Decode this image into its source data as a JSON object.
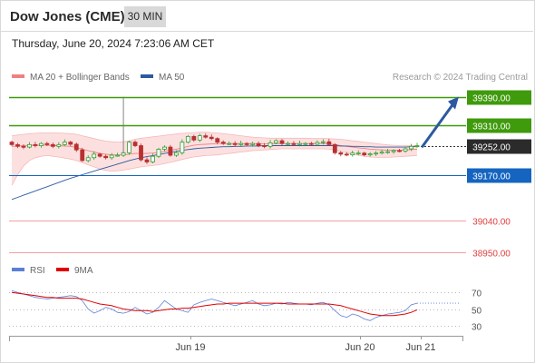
{
  "header": {
    "title": "Dow Jones (CME)",
    "timeframe": "30 MIN"
  },
  "datetime": "Thursday, June 20, 2024 7:23:06 AM CET",
  "legend": [
    {
      "label": "MA 20 + Bollinger Bands",
      "color": "#f08080"
    },
    {
      "label": "MA 50",
      "color": "#2c5aa0"
    }
  ],
  "credit": "Research © 2024 Trading Central",
  "rsi_legend": [
    {
      "label": "RSI",
      "color": "#5b7fd6"
    },
    {
      "label": "9MA",
      "color": "#e00000"
    }
  ],
  "colors": {
    "up": "#2e9e2e",
    "down": "#b83030",
    "resistance": "#3f9a0c",
    "support": "#1565c0",
    "target_low": "#e04040",
    "current": "#2b2b2b",
    "arrow": "#2c5aa0"
  },
  "chart_data": [
    {
      "type": "candlestick",
      "ylim": [
        38920,
        39420
      ],
      "x_ticks": [
        "Jun 19",
        "Jun 20",
        "Jun 21"
      ],
      "price_levels": [
        {
          "label": "39390.00",
          "value": 39390,
          "kind": "resistance"
        },
        {
          "label": "39310.00",
          "value": 39310,
          "kind": "resistance"
        },
        {
          "label": "39252.00",
          "value": 39252,
          "kind": "current"
        },
        {
          "label": "39170.00",
          "value": 39170,
          "kind": "support"
        },
        {
          "label": "39040.00",
          "value": 39040,
          "kind": "target_low"
        },
        {
          "label": "38950.00",
          "value": 38950,
          "kind": "target_low"
        }
      ],
      "projection": {
        "from": 39250,
        "to": 39380
      },
      "close": [
        39255,
        39250,
        39248,
        39255,
        39252,
        39258,
        39255,
        39250,
        39255,
        39262,
        39256,
        39240,
        39210,
        39218,
        39228,
        39222,
        39218,
        39225,
        39225,
        39232,
        39262,
        39252,
        39212,
        39206,
        39222,
        39242,
        39248,
        39225,
        39232,
        39262,
        39278,
        39268,
        39280,
        39276,
        39272,
        39262,
        39258,
        39258,
        39255,
        39258,
        39255,
        39258,
        39252,
        39250,
        39260,
        39266,
        39258,
        39258,
        39255,
        39258,
        39258,
        39256,
        39261,
        39263,
        39255,
        39232,
        39228,
        39226,
        39231,
        39231,
        39226,
        39229,
        39231,
        39234,
        39235,
        39238,
        39237,
        39243,
        39250,
        39252
      ],
      "open": [
        39262,
        39255,
        39250,
        39248,
        39255,
        39252,
        39258,
        39255,
        39250,
        39255,
        39262,
        39256,
        39240,
        39210,
        39218,
        39228,
        39222,
        39218,
        39225,
        39225,
        39232,
        39262,
        39252,
        39212,
        39206,
        39222,
        39242,
        39248,
        39225,
        39232,
        39262,
        39278,
        39268,
        39280,
        39276,
        39272,
        39262,
        39258,
        39258,
        39255,
        39258,
        39255,
        39258,
        39252,
        39250,
        39260,
        39266,
        39258,
        39258,
        39255,
        39258,
        39258,
        39256,
        39261,
        39263,
        39255,
        39232,
        39228,
        39226,
        39231,
        39231,
        39226,
        39229,
        39231,
        39234,
        39235,
        39238,
        39237,
        39243,
        39250
      ],
      "ma20": [
        39250,
        39251,
        39252,
        39253,
        39253,
        39253,
        39253,
        39252,
        39252,
        39251,
        39250,
        39247,
        39242,
        39238,
        39234,
        39230,
        39228,
        39226,
        39226,
        39226,
        39228,
        39230,
        39230,
        39230,
        39231,
        39233,
        39236,
        39239,
        39242,
        39246,
        39250,
        39253,
        39255,
        39256,
        39257,
        39258,
        39258,
        39258,
        39258,
        39258,
        39258,
        39258,
        39257,
        39257,
        39257,
        39258,
        39258,
        39258,
        39258,
        39258,
        39258,
        39258,
        39258,
        39258,
        39257,
        39255,
        39252,
        39250,
        39248,
        39246,
        39244,
        39242,
        39241,
        39240,
        39239,
        39239,
        39239,
        39240,
        39241,
        39242
      ],
      "bb_upper": [
        39280,
        39282,
        39284,
        39286,
        39287,
        39288,
        39288,
        39288,
        39288,
        39287,
        39286,
        39284,
        39280,
        39276,
        39272,
        39268,
        39265,
        39263,
        39262,
        39263,
        39266,
        39270,
        39273,
        39275,
        39277,
        39279,
        39281,
        39283,
        39285,
        39287,
        39288,
        39289,
        39290,
        39290,
        39289,
        39288,
        39286,
        39284,
        39282,
        39280,
        39278,
        39276,
        39275,
        39274,
        39273,
        39273,
        39273,
        39273,
        39273,
        39273,
        39273,
        39272,
        39272,
        39272,
        39272,
        39271,
        39270,
        39268,
        39266,
        39264,
        39262,
        39260,
        39258,
        39256,
        39254,
        39253,
        39252,
        39252,
        39252,
        39252
      ],
      "bb_lower": [
        39140,
        39170,
        39195,
        39210,
        39218,
        39222,
        39224,
        39222,
        39220,
        39217,
        39214,
        39210,
        39204,
        39198,
        39192,
        39186,
        39182,
        39180,
        39181,
        39183,
        39186,
        39189,
        39192,
        39194,
        39196,
        39198,
        39201,
        39205,
        39209,
        39213,
        39217,
        39220,
        39222,
        39224,
        39225,
        39226,
        39228,
        39230,
        39232,
        39234,
        39236,
        39238,
        39239,
        39240,
        39241,
        39242,
        39243,
        39243,
        39243,
        39243,
        39243,
        39243,
        39243,
        39243,
        39242,
        39240,
        39236,
        39232,
        39228,
        39225,
        39222,
        39220,
        39219,
        39219,
        39219,
        39220,
        39221,
        39222,
        39223,
        39224
      ],
      "ma50": [
        39100,
        39106,
        39112,
        39118,
        39124,
        39130,
        39136,
        39142,
        39148,
        39154,
        39160,
        39165,
        39170,
        39175,
        39180,
        39185,
        39190,
        39195,
        39200,
        39205,
        39210,
        39214,
        39218,
        39221,
        39224,
        39227,
        39230,
        39233,
        39236,
        39239,
        39241,
        39243,
        39245,
        39246,
        39247,
        39248,
        39249,
        39249,
        39250,
        39250,
        39251,
        39251,
        39251,
        39252,
        39252,
        39252,
        39252,
        39252,
        39252,
        39252,
        39252,
        39252,
        39252,
        39252,
        39252,
        39252,
        39251,
        39251,
        39250,
        39250,
        39249,
        39249,
        39248,
        39248,
        39248,
        39248,
        39248,
        39248,
        39249,
        39250
      ]
    },
    {
      "type": "line",
      "title": "RSI",
      "ylim": [
        20,
        80
      ],
      "y_ticks": [
        "70",
        "50",
        "30"
      ],
      "series": [
        {
          "name": "RSI",
          "values": [
            72,
            70,
            68,
            66,
            64,
            63,
            62,
            63,
            64,
            65,
            66,
            65,
            60,
            50,
            45,
            48,
            52,
            50,
            46,
            45,
            47,
            52,
            48,
            44,
            46,
            52,
            60,
            55,
            50,
            48,
            46,
            55,
            58,
            60,
            62,
            60,
            58,
            56,
            54,
            56,
            58,
            60,
            56,
            54,
            55,
            57,
            56,
            58,
            57,
            56,
            56,
            55,
            57,
            58,
            55,
            48,
            42,
            40,
            44,
            42,
            38,
            36,
            40,
            42,
            44,
            45,
            46,
            48,
            55,
            57
          ]
        },
        {
          "name": "9MA",
          "values": [
            70,
            69,
            68,
            67,
            66,
            65,
            64,
            64,
            63,
            63,
            63,
            63,
            62,
            60,
            58,
            56,
            55,
            54,
            52,
            50,
            49,
            48,
            48,
            48,
            47,
            48,
            49,
            50,
            50,
            51,
            51,
            52,
            53,
            54,
            55,
            56,
            56,
            57,
            57,
            57,
            57,
            57,
            57,
            57,
            57,
            57,
            57,
            56,
            56,
            56,
            56,
            56,
            56,
            56,
            56,
            55,
            54,
            52,
            50,
            48,
            46,
            44,
            43,
            42,
            42,
            42,
            43,
            44,
            46,
            49
          ]
        }
      ]
    }
  ]
}
